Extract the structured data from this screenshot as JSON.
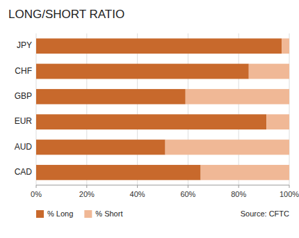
{
  "chart_data": {
    "type": "bar",
    "orientation": "horizontal",
    "stacked": true,
    "title": "LONG/SHORT RATIO",
    "categories": [
      "JPY",
      "CHF",
      "GBP",
      "EUR",
      "AUD",
      "CAD"
    ],
    "series": [
      {
        "name": "% Long",
        "color": "#C8692C",
        "values": [
          97,
          84,
          59,
          91,
          51,
          65
        ]
      },
      {
        "name": "% Short",
        "color": "#F0B896",
        "values": [
          3,
          16,
          41,
          9,
          49,
          35
        ]
      }
    ],
    "xlim": [
      0,
      100
    ],
    "xticks": [
      {
        "value": 0,
        "label": "0%"
      },
      {
        "value": 20,
        "label": "20%"
      },
      {
        "value": 40,
        "label": "40%"
      },
      {
        "value": 60,
        "label": "60%"
      },
      {
        "value": 80,
        "label": "80%"
      },
      {
        "value": 100,
        "label": "100%"
      }
    ],
    "grid": true,
    "legend": "bottom-left",
    "annotations": [
      "Source: CFTC"
    ]
  }
}
